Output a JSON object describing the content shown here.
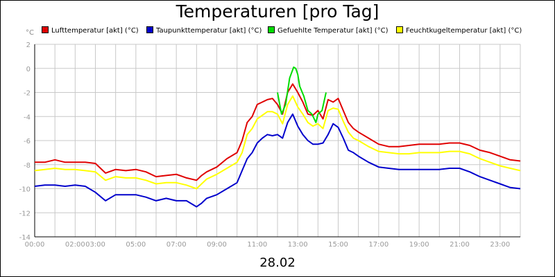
{
  "chart_data": {
    "type": "line",
    "title": "Temperaturen [pro Tag]",
    "ylabel": "°C",
    "xlabel": "28.02",
    "ylim": [
      -14,
      2
    ],
    "xlim": [
      0,
      24
    ],
    "y_ticks": [
      2,
      0,
      -2,
      -4,
      -6,
      -8,
      -10,
      -12,
      -14
    ],
    "x_ticks": [
      {
        "t": 0,
        "label": "00:00"
      },
      {
        "t": 2,
        "label": "02:00"
      },
      {
        "t": 3,
        "label": "03:00"
      },
      {
        "t": 5,
        "label": "05:00"
      },
      {
        "t": 7,
        "label": "07:00"
      },
      {
        "t": 9,
        "label": "09:00"
      },
      {
        "t": 11,
        "label": "11:00"
      },
      {
        "t": 13,
        "label": "13:00"
      },
      {
        "t": 15,
        "label": "15:00"
      },
      {
        "t": 17,
        "label": "17:00"
      },
      {
        "t": 19,
        "label": "19:00"
      },
      {
        "t": 21,
        "label": "21:00"
      },
      {
        "t": 23,
        "label": "23:00"
      }
    ],
    "grid": true,
    "legend_position": "top",
    "series": [
      {
        "name": "Lufttemperatur [akt] (°C)",
        "color": "#e00000",
        "x": [
          0,
          0.5,
          1,
          1.5,
          2,
          2.5,
          3,
          3.5,
          4,
          4.5,
          5,
          5.5,
          6,
          6.5,
          7,
          7.5,
          8,
          8.25,
          8.5,
          9,
          9.5,
          10,
          10.25,
          10.5,
          10.75,
          11,
          11.25,
          11.5,
          11.75,
          12,
          12.25,
          12.5,
          12.75,
          13,
          13.25,
          13.5,
          13.75,
          14,
          14.25,
          14.5,
          14.75,
          15,
          15.25,
          15.5,
          15.75,
          16,
          16.5,
          17,
          17.5,
          18,
          18.5,
          19,
          19.5,
          20,
          20.5,
          21,
          21.5,
          22,
          22.5,
          23,
          23.5,
          24
        ],
        "y": [
          -7.8,
          -7.8,
          -7.6,
          -7.8,
          -7.8,
          -7.8,
          -7.9,
          -8.7,
          -8.4,
          -8.5,
          -8.4,
          -8.6,
          -9.0,
          -8.9,
          -8.8,
          -9.1,
          -9.3,
          -8.9,
          -8.6,
          -8.2,
          -7.5,
          -7.0,
          -6.0,
          -4.5,
          -4.0,
          -3.0,
          -2.8,
          -2.6,
          -2.5,
          -3.0,
          -3.8,
          -2.0,
          -1.3,
          -2.0,
          -2.8,
          -3.8,
          -3.9,
          -3.5,
          -4.2,
          -2.6,
          -2.8,
          -2.5,
          -3.5,
          -4.5,
          -5.0,
          -5.3,
          -5.8,
          -6.3,
          -6.5,
          -6.5,
          -6.4,
          -6.3,
          -6.3,
          -6.3,
          -6.2,
          -6.2,
          -6.4,
          -6.8,
          -7.0,
          -7.3,
          -7.6,
          -7.7
        ]
      },
      {
        "name": "Taupunkttemperatur [akt] (°C)",
        "color": "#0000cc",
        "x": [
          0,
          0.5,
          1,
          1.5,
          2,
          2.5,
          3,
          3.5,
          4,
          4.5,
          5,
          5.5,
          6,
          6.5,
          7,
          7.5,
          8,
          8.25,
          8.5,
          9,
          9.5,
          10,
          10.25,
          10.5,
          10.75,
          11,
          11.25,
          11.5,
          11.75,
          12,
          12.25,
          12.5,
          12.75,
          13,
          13.25,
          13.5,
          13.75,
          14,
          14.25,
          14.5,
          14.75,
          15,
          15.25,
          15.5,
          15.75,
          16,
          16.5,
          17,
          17.5,
          18,
          18.5,
          19,
          19.5,
          20,
          20.5,
          21,
          21.5,
          22,
          22.5,
          23,
          23.5,
          24
        ],
        "y": [
          -9.8,
          -9.7,
          -9.7,
          -9.8,
          -9.7,
          -9.8,
          -10.3,
          -11.0,
          -10.5,
          -10.5,
          -10.5,
          -10.7,
          -11.0,
          -10.8,
          -11.0,
          -11.0,
          -11.5,
          -11.2,
          -10.8,
          -10.5,
          -10.0,
          -9.5,
          -8.5,
          -7.5,
          -7.0,
          -6.2,
          -5.8,
          -5.5,
          -5.6,
          -5.5,
          -5.8,
          -4.5,
          -3.8,
          -4.8,
          -5.5,
          -6.0,
          -6.3,
          -6.3,
          -6.2,
          -5.5,
          -4.6,
          -4.9,
          -5.8,
          -6.8,
          -7.0,
          -7.3,
          -7.8,
          -8.2,
          -8.3,
          -8.4,
          -8.4,
          -8.4,
          -8.4,
          -8.4,
          -8.3,
          -8.3,
          -8.6,
          -9.0,
          -9.3,
          -9.6,
          -9.9,
          -10.0
        ]
      },
      {
        "name": "Gefuehlte Temperatur [akt] (°C)",
        "color": "#00dd00",
        "x": [
          12.0,
          12.2,
          12.4,
          12.6,
          12.8,
          12.9,
          13.0,
          13.1,
          13.3,
          13.5,
          13.7,
          13.9,
          14.0,
          14.2,
          14.4
        ],
        "y": [
          -2.0,
          -3.8,
          -3.0,
          -0.8,
          0.1,
          0.0,
          -0.5,
          -1.5,
          -2.3,
          -3.5,
          -3.8,
          -4.5,
          -3.8,
          -3.5,
          -2.0
        ]
      },
      {
        "name": "Feuchtkugeltemperatur [akt] (°C)",
        "color": "#ffff00",
        "x": [
          0,
          0.5,
          1,
          1.5,
          2,
          2.5,
          3,
          3.5,
          4,
          4.5,
          5,
          5.5,
          6,
          6.5,
          7,
          7.5,
          8,
          8.25,
          8.5,
          9,
          9.5,
          10,
          10.25,
          10.5,
          10.75,
          11,
          11.25,
          11.5,
          11.75,
          12,
          12.25,
          12.5,
          12.75,
          13,
          13.25,
          13.5,
          13.75,
          14,
          14.25,
          14.5,
          14.75,
          15,
          15.25,
          15.5,
          15.75,
          16,
          16.5,
          17,
          17.5,
          18,
          18.5,
          19,
          19.5,
          20,
          20.5,
          21,
          21.5,
          22,
          22.5,
          23,
          23.5,
          24
        ],
        "y": [
          -8.5,
          -8.4,
          -8.3,
          -8.4,
          -8.4,
          -8.5,
          -8.6,
          -9.3,
          -9.0,
          -9.1,
          -9.1,
          -9.3,
          -9.6,
          -9.5,
          -9.5,
          -9.7,
          -10.0,
          -9.6,
          -9.2,
          -8.8,
          -8.3,
          -7.8,
          -7.0,
          -5.5,
          -5.0,
          -4.2,
          -3.9,
          -3.6,
          -3.6,
          -3.8,
          -4.6,
          -3.0,
          -2.3,
          -3.2,
          -3.8,
          -4.5,
          -4.8,
          -4.6,
          -5.0,
          -3.5,
          -3.3,
          -3.4,
          -4.4,
          -5.3,
          -5.8,
          -6.0,
          -6.5,
          -6.9,
          -7.0,
          -7.1,
          -7.1,
          -7.0,
          -7.0,
          -7.0,
          -6.9,
          -6.9,
          -7.1,
          -7.5,
          -7.8,
          -8.1,
          -8.3,
          -8.5
        ]
      }
    ]
  }
}
